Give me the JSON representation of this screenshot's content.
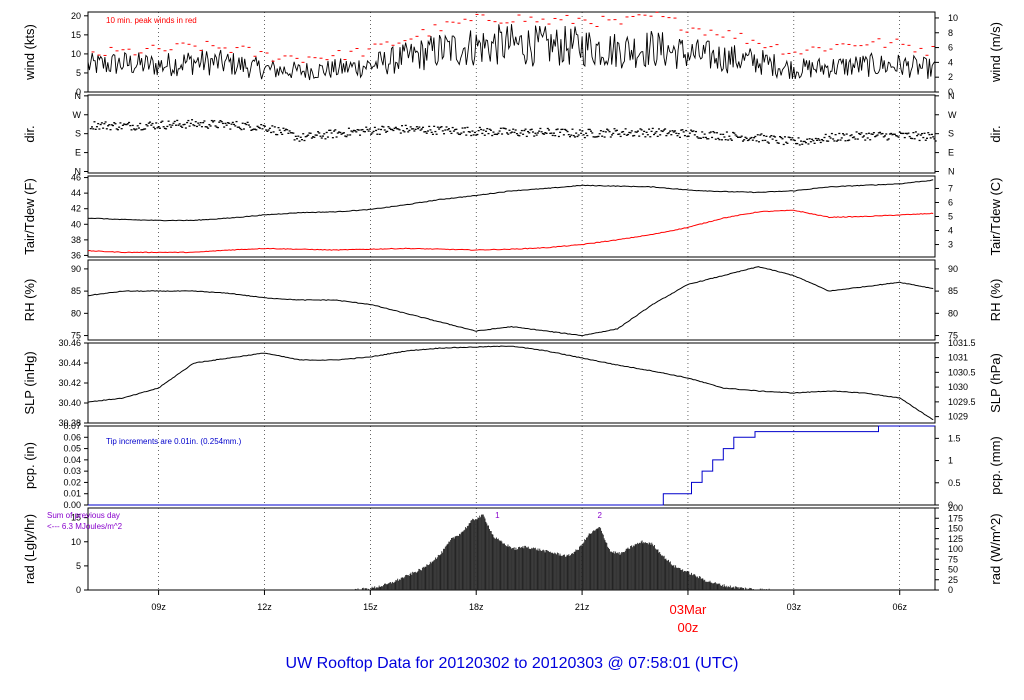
{
  "title": "UW Rooftop Data for 20120302  to  20120303 @ 07:58:01  (UTC)",
  "colors": {
    "axis": "#000000",
    "grid": "#000000",
    "red": "#ff0000",
    "blue": "#0000cc",
    "purple": "#8800cc",
    "title": "#0000dd",
    "rad_fill": "#222222"
  },
  "time_axis": {
    "range_hours": [
      7.0,
      31.0
    ],
    "ticks": [
      {
        "hour": 9,
        "label": "09z"
      },
      {
        "hour": 12,
        "label": "12z"
      },
      {
        "hour": 15,
        "label": "15z"
      },
      {
        "hour": 18,
        "label": "18z"
      },
      {
        "hour": 21,
        "label": "21z"
      },
      {
        "hour": 24,
        "label": "03Mar"
      },
      {
        "hour": 27,
        "label": "03z"
      },
      {
        "hour": 30,
        "label": "06z"
      }
    ],
    "day_label": "03Mar",
    "day_sublabel": "00z"
  },
  "chart_data": [
    {
      "id": "wind",
      "type": "line",
      "ylabel_left": "wind (kts)",
      "ylabel_right": "wind (m/s)",
      "ylim": [
        0,
        21
      ],
      "left_ticks": [
        "0",
        "5",
        "10",
        "15",
        "20"
      ],
      "right_ticks": [
        "0",
        "2",
        "4",
        "6",
        "8",
        "10"
      ],
      "annotation": "10 min. peak winds in red",
      "series": [
        {
          "name": "wind speed",
          "color": "#000000",
          "x": [
            7,
            8,
            9,
            10,
            11,
            12,
            13,
            14,
            15,
            16,
            17,
            18,
            19,
            20,
            21,
            22,
            23,
            24,
            25,
            26,
            27,
            28,
            29,
            30,
            31
          ],
          "values": [
            7,
            7.5,
            7,
            8,
            7.5,
            6,
            5.5,
            6,
            7,
            9,
            11,
            12,
            12.5,
            12,
            12,
            11,
            11.5,
            10,
            9,
            8,
            6,
            6.5,
            7,
            7,
            6
          ]
        },
        {
          "name": "10 min peak",
          "color": "#ff0000",
          "x": [
            7,
            8,
            9,
            10,
            11,
            12,
            13,
            14,
            15,
            16,
            17,
            18,
            19,
            20,
            21,
            22,
            23,
            24,
            25,
            26,
            27,
            28,
            29,
            30,
            31
          ],
          "values": [
            10,
            10.5,
            11,
            12,
            11.5,
            9.5,
            9,
            9.5,
            11,
            14,
            17,
            19,
            19.5,
            18.5,
            19,
            18,
            20,
            17,
            15.5,
            13,
            10.5,
            12,
            13,
            12.5,
            10.5
          ]
        }
      ]
    },
    {
      "id": "dir",
      "type": "scatter",
      "ylabel_left": "dir.",
      "ylabel_right": "dir.",
      "ylim": [
        0,
        360
      ],
      "left_ticks": [
        "N",
        "E",
        "S",
        "W",
        "N"
      ],
      "right_ticks": [
        "N",
        "E",
        "S",
        "W",
        "N"
      ],
      "series": [
        {
          "name": "wind direction",
          "color": "#000000",
          "x": [
            7,
            8,
            9,
            10,
            11,
            12,
            13,
            14,
            15,
            16,
            17,
            18,
            19,
            20,
            21,
            22,
            23,
            24,
            25,
            26,
            27,
            28,
            29,
            30,
            31
          ],
          "values": [
            225,
            220,
            225,
            230,
            225,
            215,
            165,
            185,
            200,
            205,
            200,
            195,
            190,
            190,
            185,
            190,
            190,
            185,
            175,
            165,
            145,
            165,
            175,
            175,
            170
          ]
        }
      ]
    },
    {
      "id": "temp",
      "type": "line",
      "ylabel_left": "Tair/Tdew (F)",
      "ylabel_right": "Tair/Tdew (C)",
      "ylim": [
        35.8,
        46.2
      ],
      "left_ticks": [
        "36",
        "38",
        "40",
        "42",
        "44",
        "46"
      ],
      "right_ticks": [
        "3",
        "4",
        "5",
        "6",
        "7"
      ],
      "series": [
        {
          "name": "Tair",
          "color": "#000000",
          "x": [
            7,
            8,
            9,
            10,
            11,
            12,
            13,
            14,
            15,
            16,
            17,
            18,
            19,
            20,
            21,
            22,
            23,
            24,
            25,
            26,
            27,
            28,
            29,
            30,
            31
          ],
          "values": [
            40.8,
            40.6,
            40.5,
            40.5,
            40.8,
            41.2,
            41.5,
            41.6,
            41.9,
            42.5,
            43.2,
            43.7,
            44.3,
            44.6,
            45.0,
            44.9,
            44.8,
            44.4,
            44.2,
            44.1,
            44.3,
            44.8,
            45.0,
            45.2,
            45.7
          ]
        },
        {
          "name": "Tdew",
          "color": "#ff0000",
          "x": [
            7,
            8,
            9,
            10,
            11,
            12,
            13,
            14,
            15,
            16,
            17,
            18,
            19,
            20,
            21,
            22,
            23,
            24,
            25,
            26,
            27,
            28,
            29,
            30,
            31
          ],
          "values": [
            36.6,
            36.4,
            36.4,
            36.4,
            36.7,
            36.9,
            36.8,
            36.7,
            36.8,
            36.9,
            36.8,
            36.7,
            36.8,
            37.0,
            37.4,
            38.0,
            38.7,
            39.6,
            40.8,
            41.6,
            41.8,
            40.9,
            41.0,
            41.2,
            41.4
          ]
        }
      ]
    },
    {
      "id": "rh",
      "type": "line",
      "ylabel_left": "RH (%)",
      "ylabel_right": "RH (%)",
      "ylim": [
        74,
        92
      ],
      "left_ticks": [
        "75",
        "80",
        "85",
        "90"
      ],
      "right_ticks": [
        "75",
        "80",
        "85",
        "90"
      ],
      "series": [
        {
          "name": "RH",
          "color": "#000000",
          "x": [
            7,
            8,
            9,
            10,
            11,
            12,
            13,
            14,
            15,
            16,
            17,
            18,
            19,
            20,
            21,
            22,
            23,
            24,
            25,
            26,
            27,
            28,
            29,
            30,
            31
          ],
          "values": [
            84,
            85,
            85,
            85,
            84.5,
            83.5,
            83,
            83,
            82,
            80,
            78,
            76,
            77,
            76,
            75,
            76.5,
            82,
            86.5,
            88.5,
            90.5,
            88.5,
            85,
            86,
            87,
            85.5
          ]
        }
      ]
    },
    {
      "id": "slp",
      "type": "line",
      "ylabel_left": "SLP (inHg)",
      "ylabel_right": "SLP (hPa)",
      "ylim": [
        30.38,
        30.46
      ],
      "left_ticks": [
        "30.38",
        "30.40",
        "30.42",
        "30.44",
        "30.46"
      ],
      "right_ticks": [
        "1029",
        "1029.5",
        "1030",
        "1030.5",
        "1031",
        "1031.5"
      ],
      "series": [
        {
          "name": "SLP",
          "color": "#000000",
          "x": [
            7,
            8,
            9,
            10,
            11,
            12,
            13,
            14,
            15,
            16,
            17,
            18,
            19,
            20,
            21,
            22,
            23,
            24,
            25,
            26,
            27,
            28,
            29,
            30,
            31
          ],
          "values": [
            30.401,
            30.405,
            30.415,
            30.44,
            30.445,
            30.45,
            30.443,
            30.443,
            30.446,
            30.452,
            30.455,
            30.456,
            30.457,
            30.452,
            30.445,
            30.438,
            30.432,
            30.425,
            30.415,
            30.412,
            30.41,
            30.412,
            30.41,
            30.405,
            30.382
          ]
        }
      ]
    },
    {
      "id": "pcp",
      "type": "line",
      "ylabel_left": "pcp. (in)",
      "ylabel_right": "pcp. (mm)",
      "ylim": [
        0,
        0.07
      ],
      "left_ticks": [
        "0.00",
        "0.01",
        "0.02",
        "0.03",
        "0.04",
        "0.05",
        "0.06",
        "0.07"
      ],
      "right_ticks": [
        "0",
        "0.5",
        "1",
        "1.5"
      ],
      "annotation": "Tip increments are 0.01in. (0.254mm.)",
      "series": [
        {
          "name": "cumulative precipitation",
          "color": "#0000cc",
          "x": [
            7.0,
            23.3,
            23.3,
            24.1,
            24.1,
            24.4,
            24.4,
            24.7,
            24.7,
            25.0,
            25.0,
            25.3,
            25.3,
            25.9,
            25.9,
            29.4,
            29.4,
            31.0
          ],
          "values": [
            0.0,
            0.0,
            0.01,
            0.01,
            0.02,
            0.02,
            0.03,
            0.03,
            0.04,
            0.04,
            0.05,
            0.05,
            0.06,
            0.06,
            0.065,
            0.065,
            0.07,
            0.07
          ]
        }
      ]
    },
    {
      "id": "rad",
      "type": "area",
      "ylabel_left": "rad (Lgly/hr)",
      "ylabel_right": "rad (W/m^2)",
      "ylim": [
        0,
        17
      ],
      "left_ticks": [
        "0",
        "5",
        "10",
        "15"
      ],
      "right_ticks": [
        "0",
        "25",
        "50",
        "75",
        "100",
        "125",
        "150",
        "175",
        "200"
      ],
      "annotation_line1": "Sum of previous day",
      "annotation_line2": "<--- 6.3 MJoules/m^2",
      "markers": [
        {
          "hour": 18.6,
          "label": "1"
        },
        {
          "hour": 21.5,
          "label": "2"
        }
      ],
      "series": [
        {
          "name": "solar radiation",
          "color": "#222222",
          "x": [
            14.5,
            15.0,
            15.5,
            16.0,
            16.5,
            17.0,
            17.3,
            17.6,
            17.9,
            18.2,
            18.5,
            18.8,
            19.1,
            19.4,
            19.7,
            20.0,
            20.3,
            20.6,
            20.9,
            21.2,
            21.5,
            21.8,
            22.1,
            22.4,
            22.7,
            23.0,
            23.3,
            23.6,
            23.9,
            24.2,
            24.5,
            24.8,
            25.1,
            25.5,
            26.0,
            26.3
          ],
          "values": [
            0,
            0.3,
            1.2,
            2.8,
            4.5,
            7.5,
            10.5,
            12.0,
            14.5,
            15.5,
            11.0,
            9.5,
            8.5,
            9.0,
            8.5,
            8.0,
            7.5,
            7.0,
            8.5,
            11.5,
            13.0,
            8.0,
            7.5,
            9.0,
            10.0,
            9.5,
            7.0,
            5.0,
            4.0,
            3.0,
            2.0,
            1.3,
            0.8,
            0.4,
            0.1,
            0
          ]
        }
      ]
    }
  ]
}
